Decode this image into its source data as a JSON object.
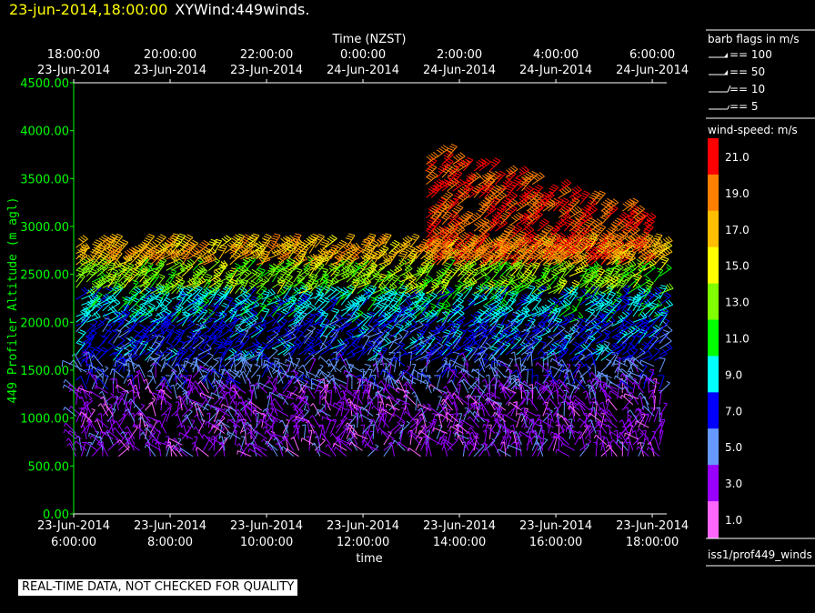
{
  "header": {
    "date": "23-jun-2014,18:00:00",
    "title": "XYWind:449winds."
  },
  "chart_data": {
    "type": "wind-barb profile (time-height)",
    "x_top_label": "Time (NZST)",
    "x_top_ticks": [
      {
        "t": 0,
        "l1": "18:00:00",
        "l2": "23-Jun-2014"
      },
      {
        "t": 2,
        "l1": "20:00:00",
        "l2": "23-Jun-2014"
      },
      {
        "t": 4,
        "l1": "22:00:00",
        "l2": "23-Jun-2014"
      },
      {
        "t": 6,
        "l1": "0:00:00",
        "l2": "24-Jun-2014"
      },
      {
        "t": 8,
        "l1": "2:00:00",
        "l2": "24-Jun-2014"
      },
      {
        "t": 10,
        "l1": "4:00:00",
        "l2": "24-Jun-2014"
      },
      {
        "t": 12,
        "l1": "6:00:00",
        "l2": "24-Jun-2014"
      }
    ],
    "x_bottom_label": "time",
    "x_bottom_ticks": [
      {
        "t": 0,
        "l1": "23-Jun-2014",
        "l2": "6:00:00"
      },
      {
        "t": 2,
        "l1": "23-Jun-2014",
        "l2": "8:00:00"
      },
      {
        "t": 4,
        "l1": "23-Jun-2014",
        "l2": "10:00:00"
      },
      {
        "t": 6,
        "l1": "23-Jun-2014",
        "l2": "12:00:00"
      },
      {
        "t": 8,
        "l1": "23-Jun-2014",
        "l2": "14:00:00"
      },
      {
        "t": 10,
        "l1": "23-Jun-2014",
        "l2": "16:00:00"
      },
      {
        "t": 12,
        "l1": "23-Jun-2014",
        "l2": "18:00:00"
      }
    ],
    "xlim": [
      0,
      12.3
    ],
    "ylabel": "449 Profiler Altitude (m agl)",
    "ylim": [
      0,
      4500
    ],
    "y_ticks": [
      "0.00",
      "500.00",
      "1000.00",
      "1500.00",
      "2000.00",
      "2500.00",
      "3000.00",
      "3500.00",
      "4000.00",
      "4500.00"
    ],
    "y_tick_values": [
      0,
      500,
      1000,
      1500,
      2000,
      2500,
      3000,
      3500,
      4000,
      4500
    ],
    "barb_legend": {
      "title": "barb flags in m/s",
      "items": [
        {
          "label": "== 100",
          "type": "flag"
        },
        {
          "label": "== 50",
          "type": "flag"
        },
        {
          "label": "== 10",
          "type": "full"
        },
        {
          "label": "== 5",
          "type": "half"
        }
      ]
    },
    "colorbar": {
      "title": "wind-speed: m/s",
      "bands": [
        {
          "color": "#ff0000",
          "label": "21.0"
        },
        {
          "color": "#ff8000",
          "label": "19.0"
        },
        {
          "color": "#ffbf00",
          "label": "17.0"
        },
        {
          "color": "#ffff00",
          "label": "15.0"
        },
        {
          "color": "#80ff00",
          "label": "13.0"
        },
        {
          "color": "#00ff00",
          "label": "11.0"
        },
        {
          "color": "#00ffff",
          "label": "9.0"
        },
        {
          "color": "#0000ff",
          "label": "7.0"
        },
        {
          "color": "#6699ff",
          "label": "5.0"
        },
        {
          "color": "#9900ff",
          "label": "3.0"
        },
        {
          "color": "#ff66ff",
          "label": "1.0"
        }
      ]
    },
    "data_source": "iss1/prof449_winds",
    "data_profile": {
      "layers": [
        {
          "h0": 600,
          "h1": 1300,
          "speed": 3
        },
        {
          "h0": 1300,
          "h1": 1600,
          "speed": 5
        },
        {
          "h0": 1600,
          "h1": 2000,
          "speed": 7
        },
        {
          "h0": 2000,
          "h1": 2300,
          "speed": 9
        },
        {
          "h0": 2300,
          "h1": 2600,
          "speed": 13
        },
        {
          "h0": 2600,
          "h1": 2800,
          "speed": 17
        }
      ],
      "upper_segment": {
        "t0": 7.3,
        "t1": 11.9,
        "h0": 2600,
        "h1": 3800,
        "speed": 20
      }
    }
  },
  "footer": {
    "quality_note": "REAL-TIME DATA, NOT CHECKED FOR QUALITY"
  }
}
